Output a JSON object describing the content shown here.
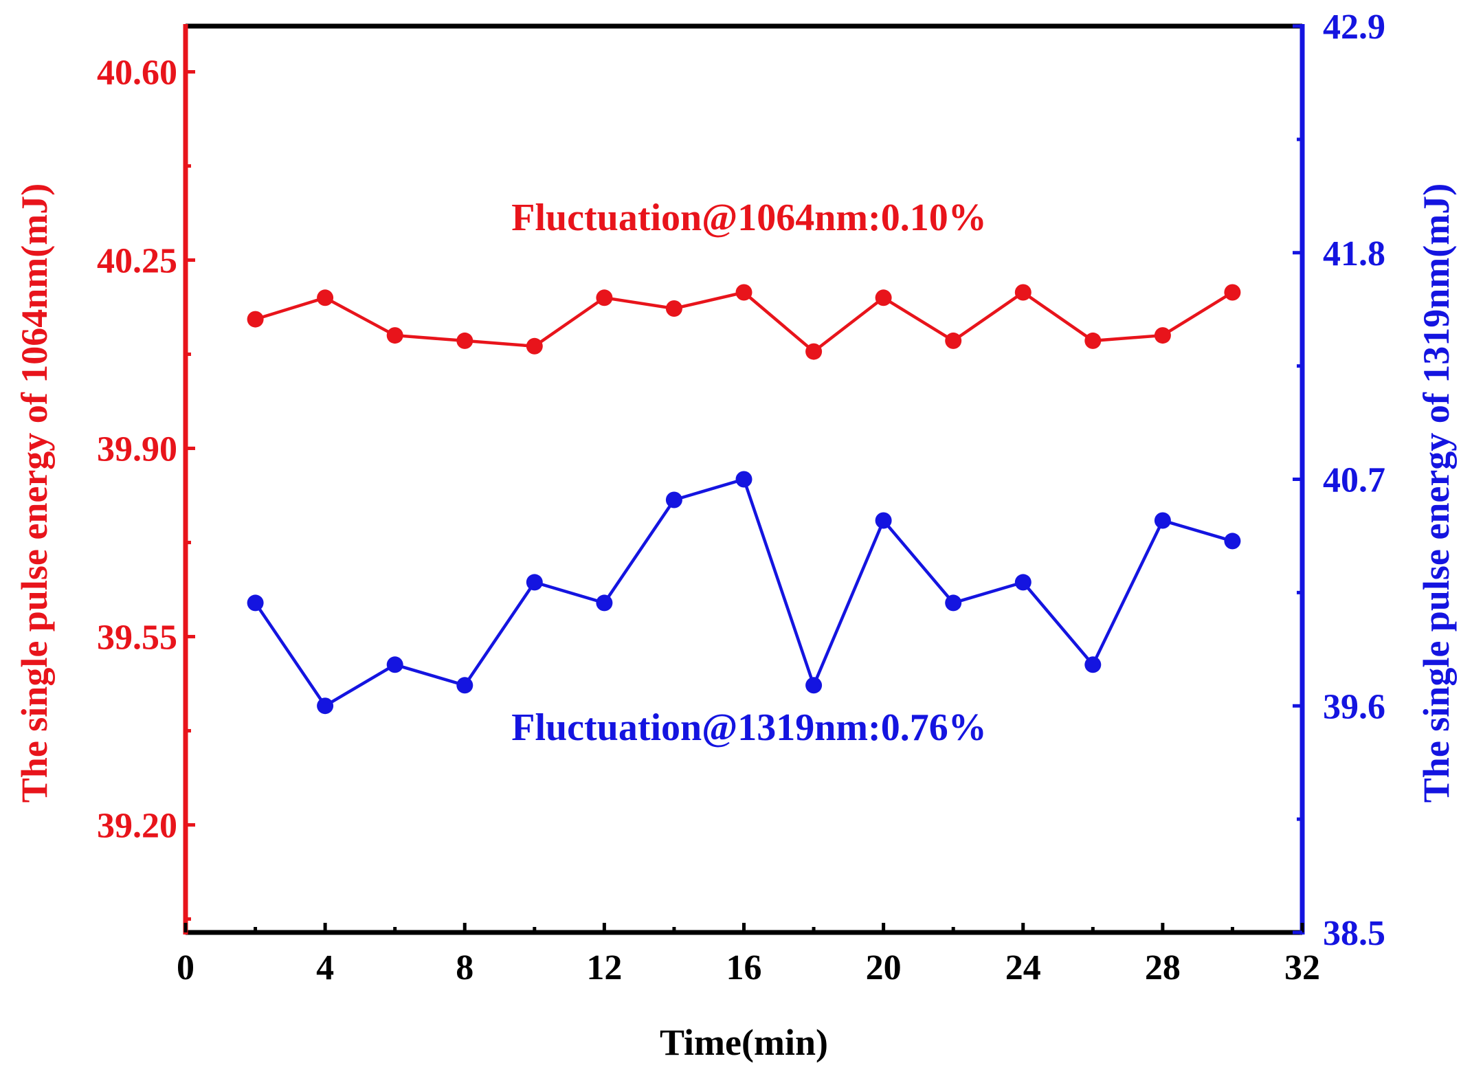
{
  "chart_data": {
    "type": "line",
    "title": "",
    "xlabel": "Time(min)",
    "ylabel_left": "The single pulse energy of 1064nm(mJ)",
    "ylabel_right": "The single pulse energy of 1319nm(mJ)",
    "xlim": [
      0,
      32
    ],
    "xticks": [
      0,
      4,
      8,
      12,
      16,
      20,
      24,
      28,
      32
    ],
    "xtick_labels": [
      "0",
      "4",
      "8",
      "12",
      "16",
      "20",
      "24",
      "28",
      "32"
    ],
    "ylim_left": [
      39.0,
      40.685
    ],
    "yticks_left": [
      39.2,
      39.55,
      39.9,
      40.25,
      40.6
    ],
    "ytick_labels_left": [
      "39.20",
      "39.55",
      "39.90",
      "40.25",
      "40.60"
    ],
    "ylim_right": [
      38.5,
      42.9
    ],
    "yticks_right": [
      38.5,
      39.6,
      40.7,
      41.8,
      42.9
    ],
    "ytick_labels_right": [
      "38.5",
      "39.6",
      "40.7",
      "41.8",
      "42.9"
    ],
    "grid": false,
    "x": [
      2,
      4,
      6,
      8,
      10,
      12,
      14,
      16,
      18,
      20,
      22,
      24,
      26,
      28,
      30
    ],
    "series": [
      {
        "name": "1064nm",
        "axis": "left",
        "color": "#e8141b",
        "values": [
          40.14,
          40.18,
          40.11,
          40.1,
          40.09,
          40.18,
          40.16,
          40.19,
          40.08,
          40.18,
          40.1,
          40.19,
          40.1,
          40.11,
          40.19
        ]
      },
      {
        "name": "1319nm",
        "axis": "right",
        "color": "#1414e0",
        "values": [
          40.1,
          39.6,
          39.8,
          39.7,
          40.2,
          40.1,
          40.6,
          40.7,
          39.7,
          40.5,
          40.1,
          40.2,
          39.8,
          40.5,
          40.4
        ]
      }
    ],
    "annotations": [
      {
        "text": "Fluctuation@1064nm:0.10%",
        "color": "#e8141b"
      },
      {
        "text": "Fluctuation@1319nm:0.76%",
        "color": "#1414e0"
      }
    ]
  },
  "colors": {
    "left_axis": "#e8141b",
    "right_axis": "#1414e0",
    "frame": "#000000"
  }
}
